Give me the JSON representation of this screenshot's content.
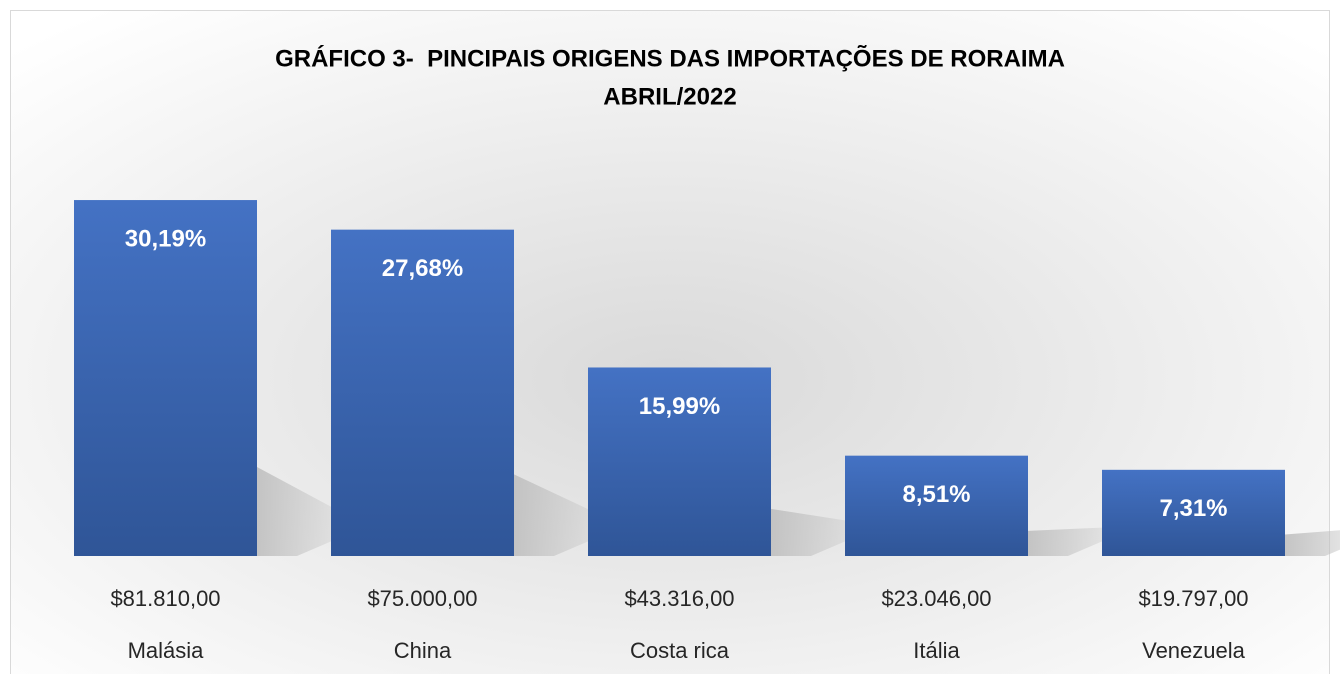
{
  "chart_data": {
    "type": "bar",
    "title": "GRÁFICO 3-  PINCIPAIS ORIGENS DAS IMPORTAÇÕES DE RORAIMA",
    "subtitle": "ABRIL/2022",
    "categories": [
      "Malásia",
      "China",
      "Costa rica",
      "Itália",
      "Venezuela"
    ],
    "amounts": [
      81810,
      75000,
      43316,
      23046,
      19797
    ],
    "amount_labels": [
      "$81.810,00",
      "$75.000,00",
      "$43.316,00",
      "$23.046,00",
      "$19.797,00"
    ],
    "values": [
      30.19,
      27.68,
      15.99,
      8.51,
      7.31
    ],
    "value_labels": [
      "30,19%",
      "27,68%",
      "15,99%",
      "8,51%",
      "7,31%"
    ],
    "color": "#4472c4"
  }
}
